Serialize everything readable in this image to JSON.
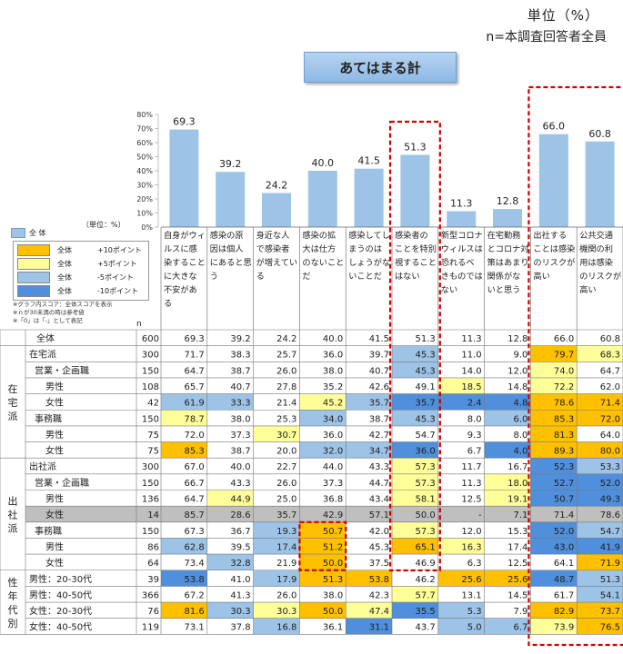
{
  "header": {
    "unit": "単位（%）",
    "base": "n=本調査回答者全員",
    "title": "あてはまる計"
  },
  "legend": {
    "unit_label": "（単位：%）",
    "base_label": "全 体",
    "items": [
      {
        "label": "全体",
        "threshold": "+10ポイント",
        "color": "#ffc000"
      },
      {
        "label": "全体",
        "threshold": "+5ポイント",
        "color": "#ffff99"
      },
      {
        "label": "全体",
        "threshold": "-5ポイント",
        "color": "#9dc3e6"
      },
      {
        "label": "全体",
        "threshold": "-10ポイント",
        "color": "#4f8fdb"
      }
    ],
    "notes": [
      "※グラフ内スコア：全体スコアを表示",
      "※ｎが30未満の時は参考値",
      "※「0」は「-」として表記"
    ],
    "n_label": "n"
  },
  "chart_data": {
    "type": "bar",
    "title": "あてはまる計",
    "ylim": [
      0,
      80
    ],
    "yticks": [
      "80%",
      "70%",
      "60%",
      "50%",
      "40%",
      "30%",
      "20%",
      "10%",
      "0%"
    ],
    "categories": [
      "自身がウィルスに感染することに大きな不安がある",
      "感染の原因は個人にあると思う",
      "身近な人で感染者が増えている",
      "感染の拡大は仕方のないことだ",
      "感染してしまうのはしょうがないことだ",
      "感染者のことを特別視することはない",
      "新型コロナウィルスは恐れるべきものではない",
      "在宅勤務とコロナ対策はあまり関係がないと思う",
      "出社することは感染のリスクが高い",
      "公共交通機関の利用は感染のリスクが高い"
    ],
    "category_lines": [
      [
        "自身がウィ",
        "ルスに感",
        "染すること",
        "に大きな",
        "不安があ",
        "る"
      ],
      [
        "感染の原",
        "因は個人",
        "にあると思",
        "う"
      ],
      [
        "身近な人",
        "で感染者",
        "が増えてい",
        "る"
      ],
      [
        "感染の拡",
        "大は仕方",
        "のないこと",
        "だ"
      ],
      [
        "感染してし",
        "まうのは",
        "しょうがな",
        "いことだ"
      ],
      [
        "感染者の",
        "ことを特別",
        "視すること",
        "はない"
      ],
      [
        "新型コロナ",
        "ウィルスは",
        "恐れるべ",
        "きものでは",
        "ない"
      ],
      [
        "在宅勤務",
        "とコロナ対",
        "策はあまり",
        "関係がな",
        "いと思う"
      ],
      [
        "出社する",
        "ことは感染",
        "のリスクが",
        "高い"
      ],
      [
        "公共交通",
        "機関の利",
        "用は感染",
        "のリスクが",
        "高い"
      ]
    ],
    "values": [
      69.3,
      39.2,
      24.2,
      40.0,
      41.5,
      51.3,
      11.3,
      12.8,
      66.0,
      60.8
    ],
    "value_labels": [
      "69.3",
      "39.2",
      "24.2",
      "40.0",
      "41.5",
      "51.3",
      "11.3",
      "12.8",
      "66.0",
      "60.8"
    ],
    "highlighted_columns": [
      5,
      8,
      9
    ],
    "bar_color": "#9dc3e6",
    "table": {
      "rows": [
        {
          "group": "",
          "label": "全体",
          "n": "600",
          "values": [
            "69.3",
            "39.2",
            "24.2",
            "40.0",
            "41.5",
            "51.3",
            "11.3",
            "12.8",
            "66.0",
            "60.8"
          ],
          "hl": [
            0,
            0,
            0,
            0,
            0,
            0,
            0,
            0,
            0,
            0
          ]
        },
        {
          "group": "在宅派",
          "label": "在宅派",
          "n": "300",
          "values": [
            "71.7",
            "38.3",
            "25.7",
            "36.0",
            "39.7",
            "45.3",
            "11.0",
            "9.0",
            "79.7",
            "68.3"
          ],
          "hl": [
            0,
            0,
            0,
            0,
            0,
            3,
            0,
            0,
            1,
            2
          ]
        },
        {
          "group": "在宅派",
          "label": "営業・企画職",
          "n": "150",
          "values": [
            "64.7",
            "38.7",
            "26.0",
            "38.0",
            "40.7",
            "45.3",
            "14.0",
            "12.0",
            "74.0",
            "64.7"
          ],
          "hl": [
            0,
            0,
            0,
            0,
            0,
            3,
            0,
            0,
            2,
            0
          ]
        },
        {
          "group": "在宅派",
          "label": "男性",
          "n": "108",
          "values": [
            "65.7",
            "40.7",
            "27.8",
            "35.2",
            "42.6",
            "49.1",
            "18.5",
            "14.8",
            "72.2",
            "62.0"
          ],
          "hl": [
            0,
            0,
            0,
            0,
            0,
            0,
            2,
            0,
            2,
            0
          ]
        },
        {
          "group": "在宅派",
          "label": "女性",
          "n": "42",
          "values": [
            "61.9",
            "33.3",
            "21.4",
            "45.2",
            "35.7",
            "35.7",
            "2.4",
            "4.8",
            "78.6",
            "71.4"
          ],
          "hl": [
            3,
            3,
            0,
            2,
            3,
            4,
            4,
            4,
            1,
            1
          ]
        },
        {
          "group": "在宅派",
          "label": "事務職",
          "n": "150",
          "values": [
            "78.7",
            "38.0",
            "25.3",
            "34.0",
            "38.7",
            "45.3",
            "8.0",
            "6.0",
            "85.3",
            "72.0"
          ],
          "hl": [
            2,
            0,
            0,
            3,
            0,
            3,
            0,
            3,
            1,
            1
          ]
        },
        {
          "group": "在宅派",
          "label": "男性",
          "n": "75",
          "values": [
            "72.0",
            "37.3",
            "30.7",
            "36.0",
            "42.7",
            "54.7",
            "9.3",
            "8.0",
            "81.3",
            "64.0"
          ],
          "hl": [
            0,
            0,
            2,
            0,
            0,
            0,
            0,
            0,
            1,
            0
          ]
        },
        {
          "group": "在宅派",
          "label": "女性",
          "n": "75",
          "values": [
            "85.3",
            "38.7",
            "20.0",
            "32.0",
            "34.7",
            "36.0",
            "6.7",
            "4.0",
            "89.3",
            "80.0"
          ],
          "hl": [
            1,
            0,
            0,
            3,
            3,
            4,
            0,
            4,
            1,
            1
          ]
        },
        {
          "group": "出社派",
          "label": "出社派",
          "n": "300",
          "values": [
            "67.0",
            "40.0",
            "22.7",
            "44.0",
            "43.3",
            "57.3",
            "11.7",
            "16.7",
            "52.3",
            "53.3"
          ],
          "hl": [
            0,
            0,
            0,
            0,
            0,
            2,
            0,
            0,
            4,
            3
          ]
        },
        {
          "group": "出社派",
          "label": "営業・企画職",
          "n": "150",
          "values": [
            "66.7",
            "43.3",
            "26.0",
            "37.3",
            "44.7",
            "57.3",
            "11.3",
            "18.0",
            "52.7",
            "52.0"
          ],
          "hl": [
            0,
            0,
            0,
            0,
            0,
            2,
            0,
            2,
            4,
            4
          ]
        },
        {
          "group": "出社派",
          "label": "男性",
          "n": "136",
          "values": [
            "64.7",
            "44.9",
            "25.0",
            "36.8",
            "43.4",
            "58.1",
            "12.5",
            "19.1",
            "50.7",
            "49.3"
          ],
          "hl": [
            0,
            2,
            0,
            0,
            0,
            2,
            0,
            2,
            4,
            4
          ]
        },
        {
          "group": "出社派",
          "label": "女性",
          "n": "14",
          "values": [
            "85.7",
            "28.6",
            "35.7",
            "42.9",
            "57.1",
            "50.0",
            "-",
            "7.1",
            "71.4",
            "78.6"
          ],
          "hl": [
            5,
            5,
            5,
            5,
            5,
            5,
            5,
            5,
            5,
            5
          ]
        },
        {
          "group": "出社派",
          "label": "事務職",
          "n": "150",
          "values": [
            "67.3",
            "36.7",
            "19.3",
            "50.7",
            "42.0",
            "57.3",
            "12.0",
            "15.3",
            "52.0",
            "54.7"
          ],
          "hl": [
            0,
            0,
            3,
            1,
            0,
            2,
            0,
            0,
            4,
            3
          ]
        },
        {
          "group": "出社派",
          "label": "男性",
          "n": "86",
          "values": [
            "62.8",
            "39.5",
            "17.4",
            "51.2",
            "45.3",
            "65.1",
            "16.3",
            "17.4",
            "43.0",
            "41.9"
          ],
          "hl": [
            3,
            0,
            3,
            1,
            0,
            1,
            2,
            0,
            4,
            4
          ]
        },
        {
          "group": "出社派",
          "label": "女性",
          "n": "64",
          "values": [
            "73.4",
            "32.8",
            "21.9",
            "50.0",
            "37.5",
            "46.9",
            "6.3",
            "12.5",
            "64.1",
            "71.9"
          ],
          "hl": [
            0,
            3,
            0,
            1,
            0,
            0,
            0,
            0,
            0,
            1
          ]
        },
        {
          "group": "性年代別",
          "label": "男性：20-30代",
          "n": "39",
          "values": [
            "53.8",
            "41.0",
            "17.9",
            "51.3",
            "53.8",
            "46.2",
            "25.6",
            "25.6",
            "48.7",
            "51.3"
          ],
          "hl": [
            4,
            0,
            3,
            1,
            1,
            0,
            1,
            1,
            4,
            3
          ]
        },
        {
          "group": "性年代別",
          "label": "男性：40-50代",
          "n": "366",
          "values": [
            "67.2",
            "41.3",
            "26.0",
            "38.0",
            "42.3",
            "57.7",
            "13.1",
            "14.5",
            "61.7",
            "54.1"
          ],
          "hl": [
            0,
            0,
            0,
            0,
            0,
            2,
            0,
            0,
            0,
            3
          ]
        },
        {
          "group": "性年代別",
          "label": "女性：20-30代",
          "n": "76",
          "values": [
            "81.6",
            "30.3",
            "30.3",
            "50.0",
            "47.4",
            "35.5",
            "5.3",
            "7.9",
            "82.9",
            "73.7"
          ],
          "hl": [
            1,
            3,
            2,
            1,
            2,
            4,
            3,
            0,
            1,
            1
          ]
        },
        {
          "group": "性年代別",
          "label": "女性：40-50代",
          "n": "119",
          "values": [
            "73.1",
            "37.8",
            "16.8",
            "36.1",
            "31.1",
            "43.7",
            "5.0",
            "6.7",
            "73.9",
            "76.5"
          ],
          "hl": [
            0,
            0,
            3,
            0,
            4,
            0,
            3,
            3,
            2,
            1
          ]
        }
      ],
      "group_labels": [
        {
          "key": "在宅派",
          "chars": [
            "在",
            "宅",
            "派"
          ]
        },
        {
          "key": "出社派",
          "chars": [
            "出",
            "社",
            "派"
          ]
        },
        {
          "key": "性年代別",
          "chars": [
            "性",
            "年",
            "代",
            "別"
          ]
        }
      ]
    }
  }
}
